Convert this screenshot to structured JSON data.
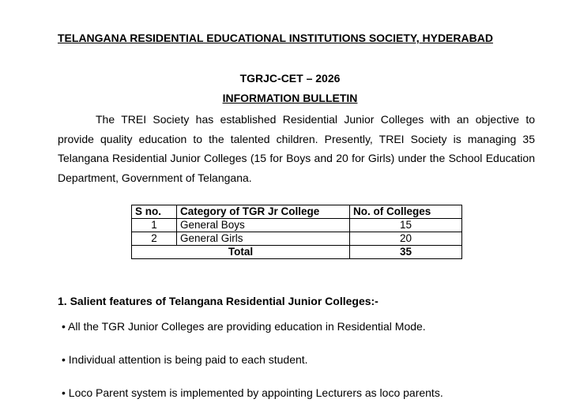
{
  "header": {
    "society": "TELANGANA RESIDENTIAL EDUCATIONAL INSTITUTIONS SOCIETY, HYDERABAD",
    "exam": "TGRJC-CET – 2026",
    "bulletin": "INFORMATION BULLETIN"
  },
  "intro": "The TREI Society has established Residential Junior Colleges with an objective to provide quality education to the talented children. Presently, TREI Society is managing 35 Telangana Residential Junior Colleges (15 for Boys and 20 for Girls) under the School Education Department, Government of Telangana.",
  "table": {
    "headers": [
      "S no.",
      "Category of TGR Jr College",
      "No. of  Colleges"
    ],
    "rows": [
      {
        "sno": "1",
        "category": "General Boys",
        "count": "15"
      },
      {
        "sno": "2",
        "category": "General Girls",
        "count": "20"
      }
    ],
    "total_label": "Total",
    "total_value": "35"
  },
  "section1": {
    "heading": "1. Salient features of Telangana Residential Junior Colleges:-",
    "bullets": [
      "All the TGR Junior Colleges are providing education in Residential Mode.",
      "Individual attention is being paid to each student.",
      "Loco Parent system is implemented by appointing Lecturers as loco parents."
    ]
  }
}
